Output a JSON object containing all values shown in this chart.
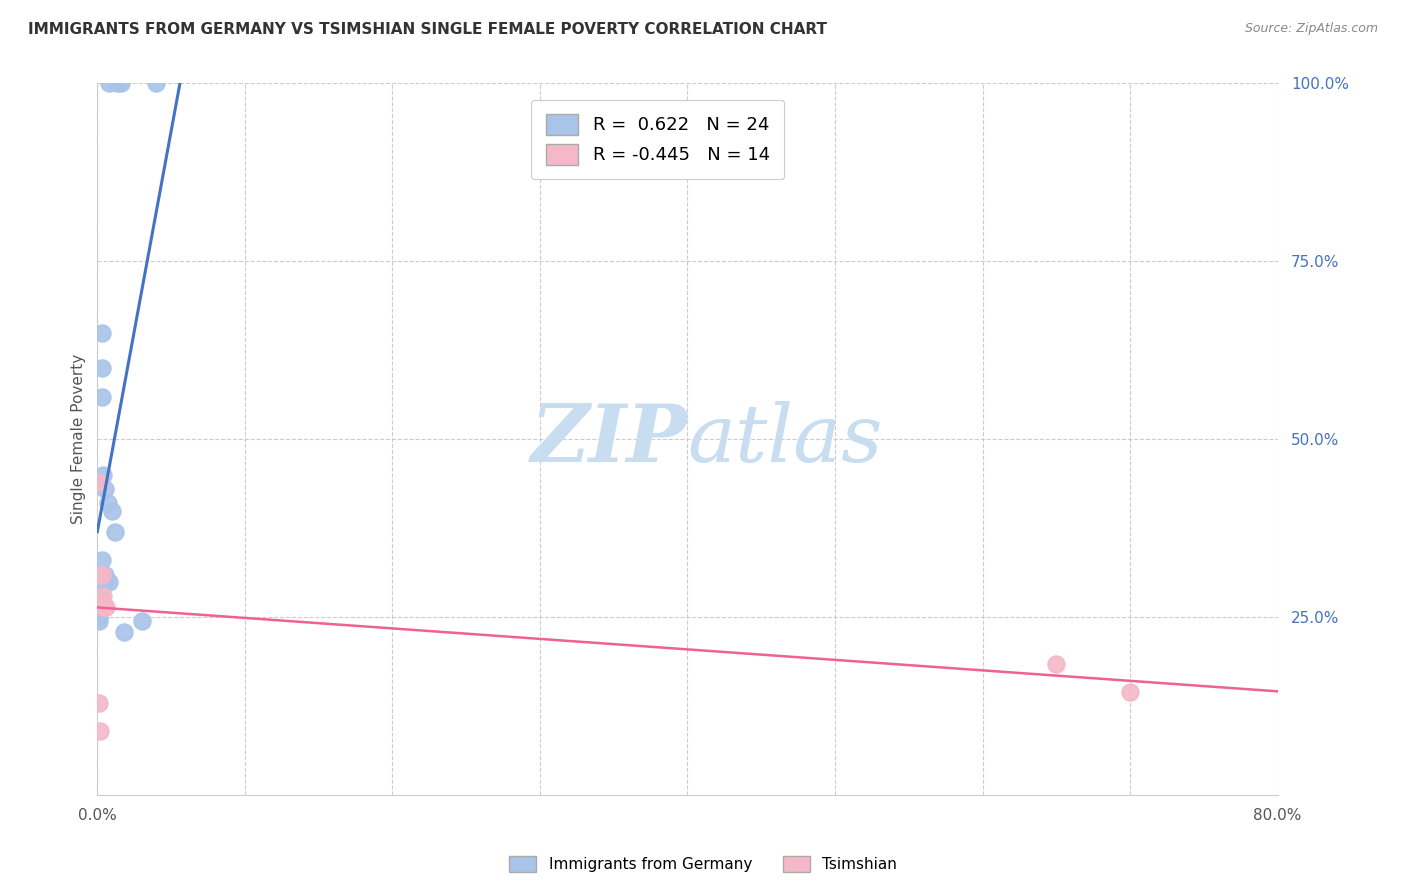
{
  "title": "IMMIGRANTS FROM GERMANY VS TSIMSHIAN SINGLE FEMALE POVERTY CORRELATION CHART",
  "source": "Source: ZipAtlas.com",
  "xlabel": "",
  "ylabel": "Single Female Poverty",
  "xlim": [
    0.0,
    0.8
  ],
  "ylim": [
    0.0,
    1.0
  ],
  "germany_R": 0.622,
  "germany_N": 24,
  "tsimshian_R": -0.445,
  "tsimshian_N": 14,
  "germany_color": "#a8c4e8",
  "tsimshian_color": "#f4b8c8",
  "germany_line_color": "#4472c4",
  "tsimshian_line_color": "#f06090",
  "watermark_zip": "ZIP",
  "watermark_atlas": "atlas",
  "watermark_color_zip": "#c8ddf0",
  "watermark_color_atlas": "#c8ddf0",
  "background_color": "#ffffff",
  "grid_color": "#cccccc",
  "germany_scatter_x": [
    0.008,
    0.013,
    0.016,
    0.04,
    0.003,
    0.003,
    0.003,
    0.004,
    0.005,
    0.007,
    0.01,
    0.012,
    0.003,
    0.005,
    0.005,
    0.008,
    0.001,
    0.002,
    0.002,
    0.004,
    0.001,
    0.001,
    0.03,
    0.018
  ],
  "germany_scatter_y": [
    1.0,
    1.0,
    1.0,
    1.0,
    0.65,
    0.6,
    0.56,
    0.45,
    0.43,
    0.41,
    0.4,
    0.37,
    0.33,
    0.31,
    0.3,
    0.3,
    0.28,
    0.28,
    0.275,
    0.27,
    0.25,
    0.245,
    0.245,
    0.23
  ],
  "tsimshian_scatter_x": [
    0.001,
    0.002,
    0.002,
    0.003,
    0.003,
    0.004,
    0.004,
    0.005,
    0.005,
    0.006,
    0.65,
    0.7,
    0.001,
    0.002
  ],
  "tsimshian_scatter_y": [
    0.44,
    0.31,
    0.27,
    0.31,
    0.27,
    0.28,
    0.265,
    0.265,
    0.265,
    0.265,
    0.185,
    0.145,
    0.13,
    0.09
  ]
}
